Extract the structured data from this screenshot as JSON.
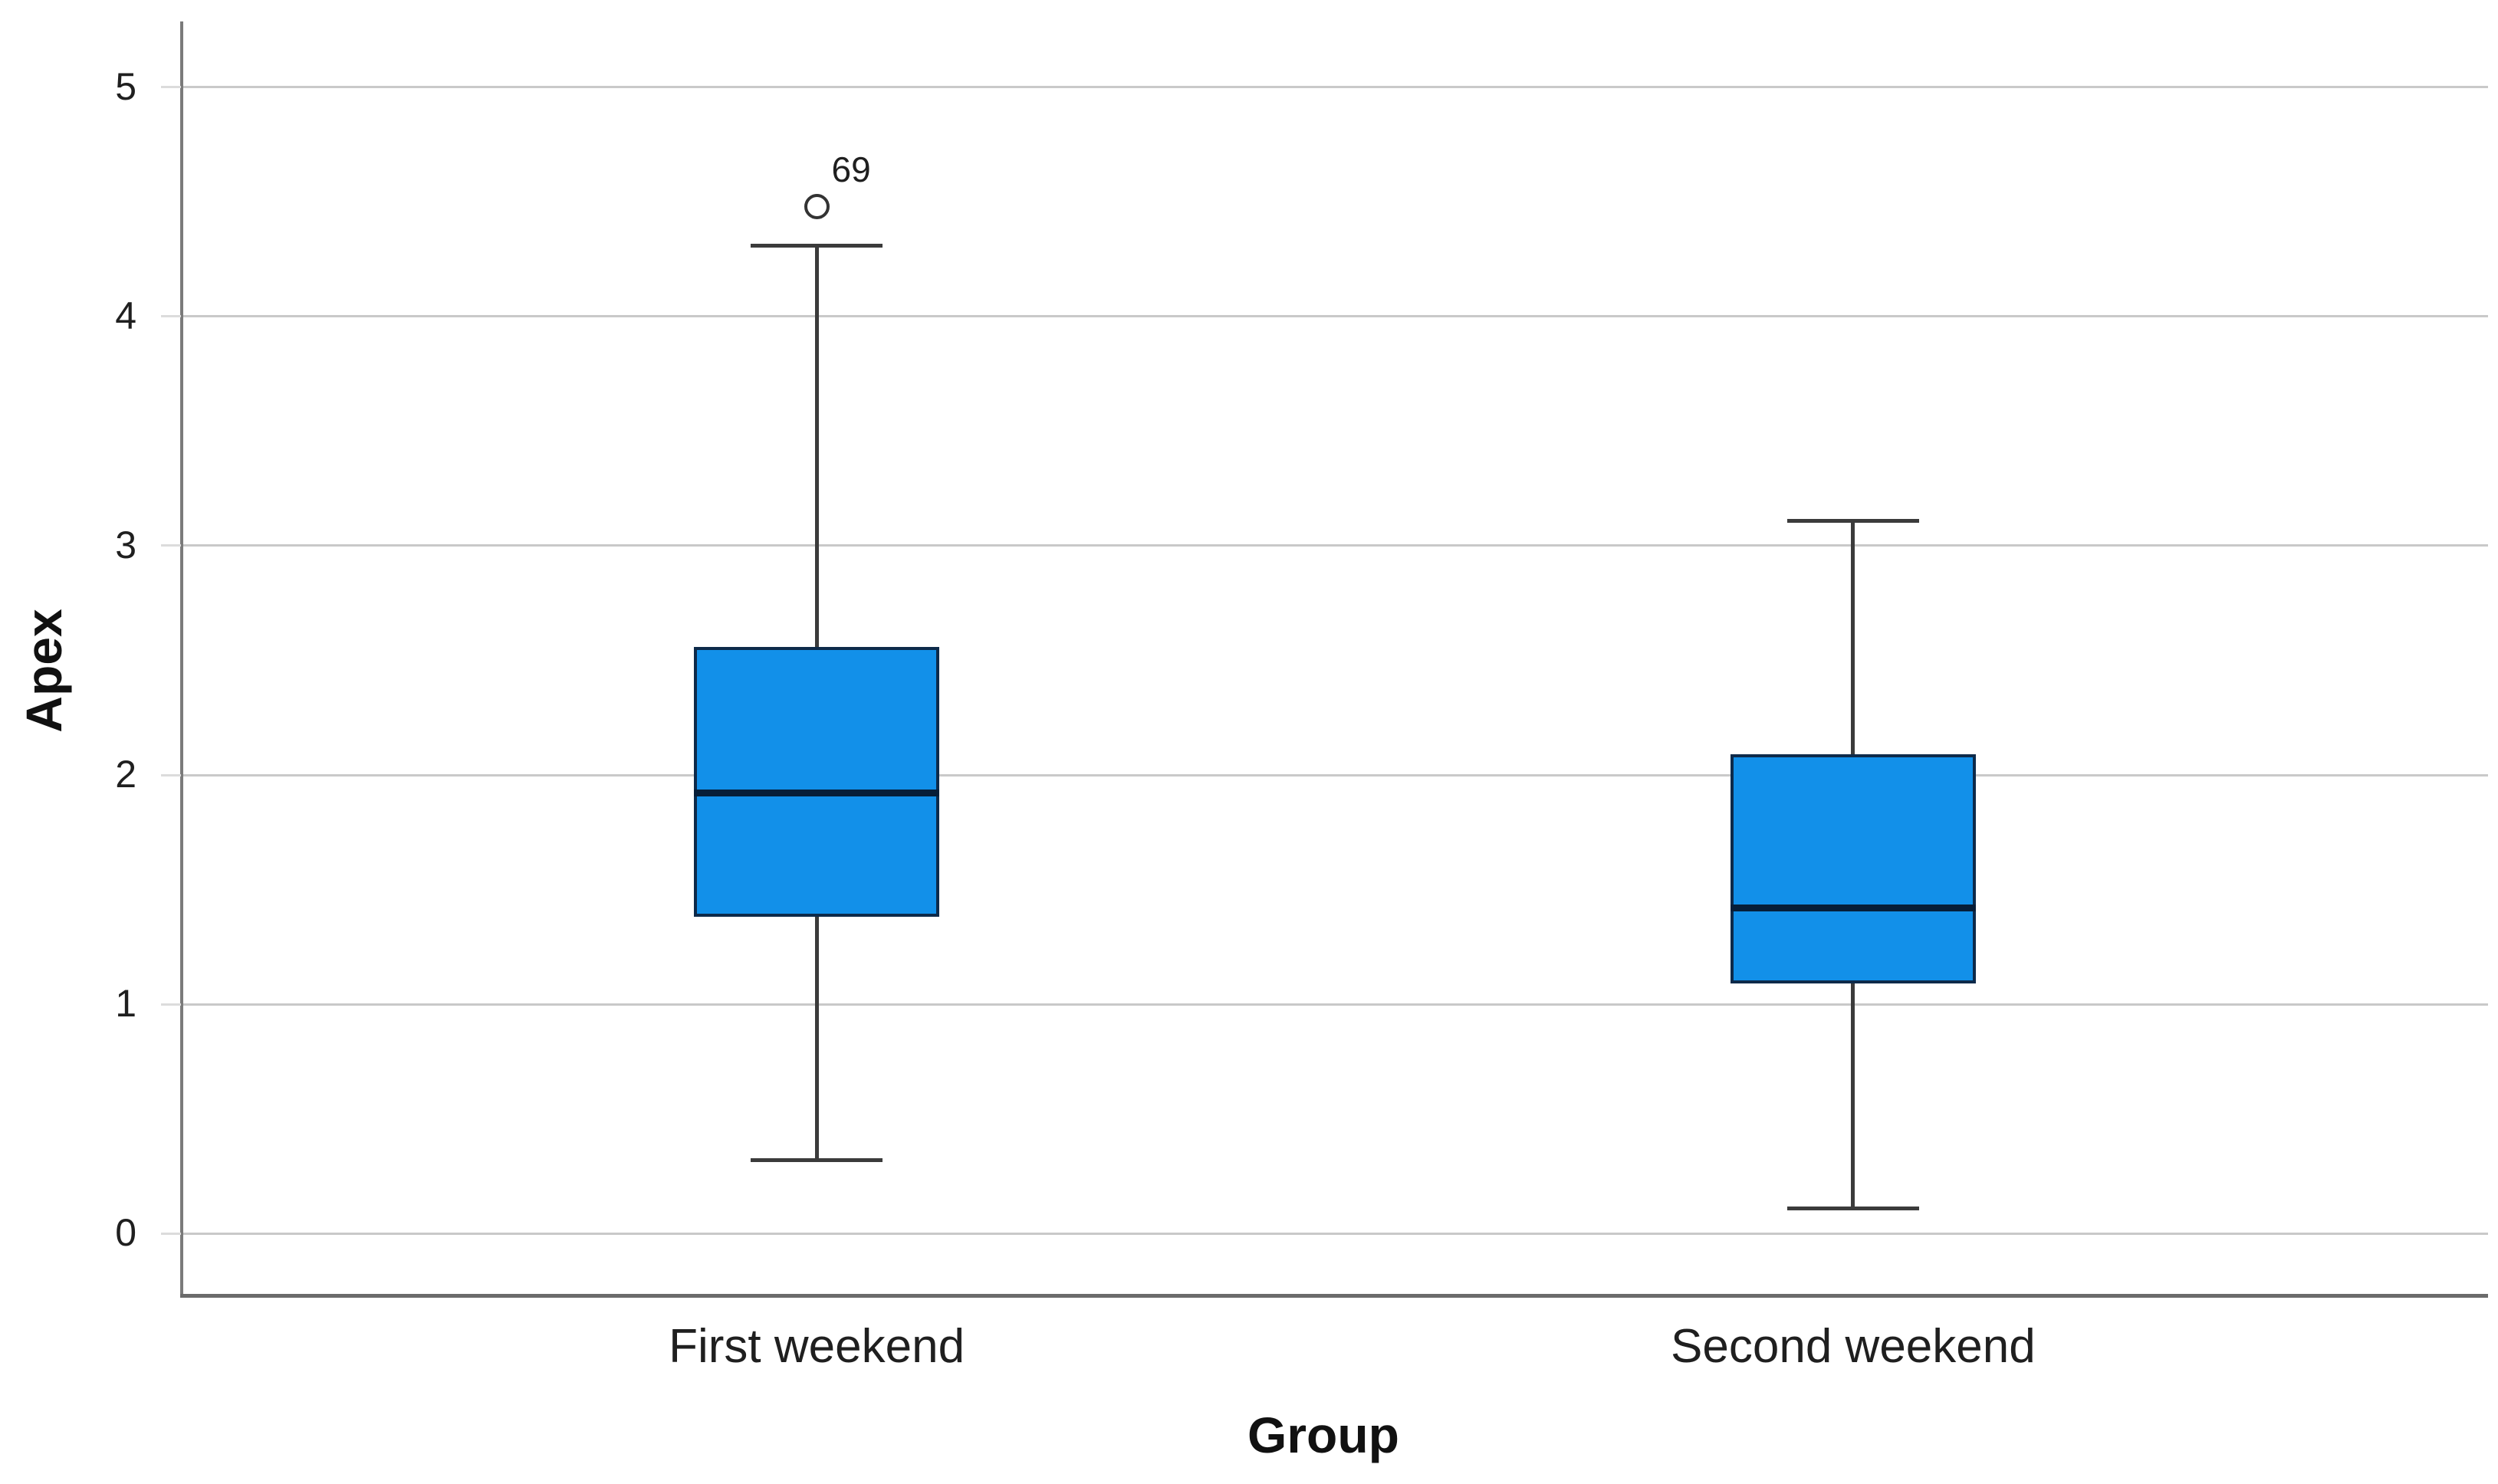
{
  "chart_data": {
    "type": "boxplot",
    "title": "",
    "xlabel": "Group",
    "ylabel": "Apex",
    "categories": [
      "First weekend",
      "Second weekend"
    ],
    "yticks": [
      0,
      1,
      2,
      3,
      4,
      5
    ],
    "ylim": [
      -0.27,
      5.28
    ],
    "grid": "horizontal-only",
    "legend": "none",
    "series": [
      {
        "name": "First weekend",
        "whisker_low": 0.32,
        "q1": 1.38,
        "median": 1.92,
        "q3": 2.56,
        "whisker_high": 4.31,
        "outliers": [
          {
            "value": 4.48,
            "label": "69"
          }
        ]
      },
      {
        "name": "Second weekend",
        "whisker_low": 0.11,
        "q1": 1.09,
        "median": 1.42,
        "q3": 2.09,
        "whisker_high": 3.11,
        "outliers": []
      }
    ],
    "colors": {
      "box_fill": "#1290e9",
      "box_border": "#0d2a4a",
      "median": "#071e38",
      "whisker": "#3b3b3b",
      "gridline": "#c9c9c9",
      "axis_line": "#7a7a7a",
      "text": "#1f1f1f",
      "outlier_stroke": "#333333"
    }
  }
}
